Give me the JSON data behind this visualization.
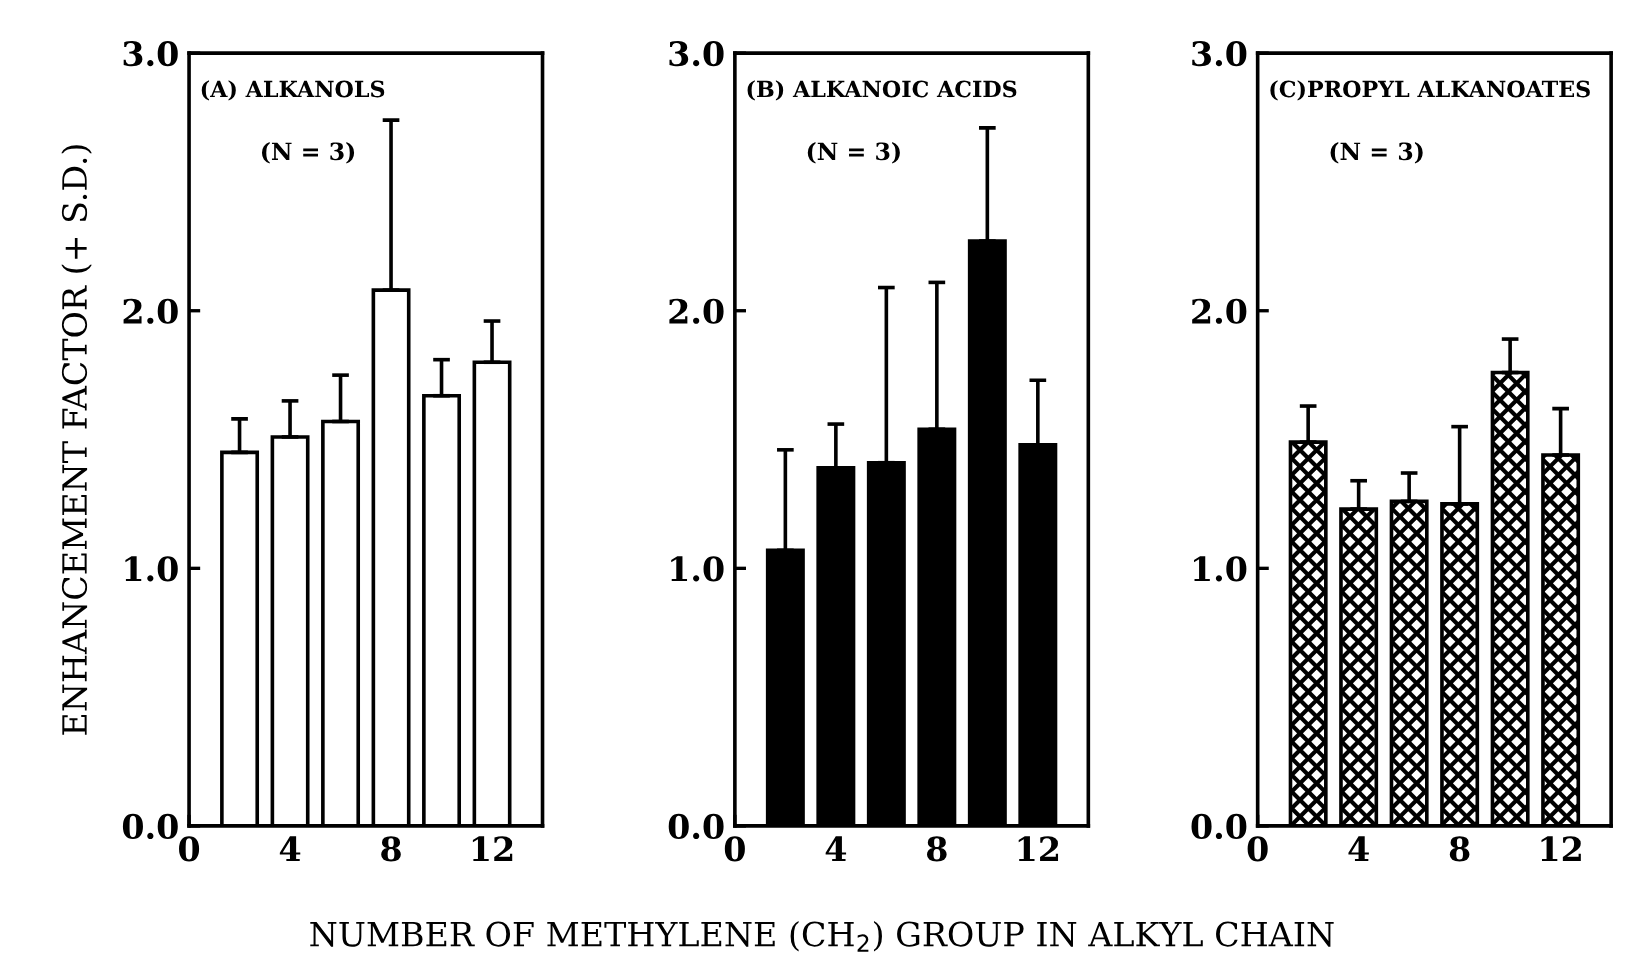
{
  "chart_data": [
    {
      "type": "bar",
      "title": "(A) ALKANOLS",
      "annotations": [
        "(N = 3)"
      ],
      "ylabel": "ENHANCEMENT FACTOR (+ S.D.)",
      "x": [
        2,
        4,
        6,
        8,
        10,
        12
      ],
      "series": [
        {
          "color": "#ffffff",
          "values": [
            1.45,
            1.51,
            1.57,
            2.08,
            1.67,
            1.8
          ],
          "errors": [
            [
              1.45,
              1.58
            ],
            [
              1.51,
              1.65
            ],
            [
              1.57,
              1.75
            ],
            [
              2.08,
              2.74
            ],
            [
              1.67,
              1.81
            ],
            [
              1.8,
              1.96
            ]
          ]
        }
      ],
      "xlim": [
        0,
        14
      ],
      "xticks": [
        0,
        4,
        8,
        12
      ],
      "ylim": [
        0,
        3
      ],
      "yticks": [
        {
          "value": 0,
          "label": "0.0"
        },
        {
          "value": 1,
          "label": "1.0"
        },
        {
          "value": 2,
          "label": "2.0"
        },
        {
          "value": 3,
          "label": "3.0"
        }
      ]
    },
    {
      "type": "bar",
      "title": "(B) ALKANOIC ACIDS",
      "annotations": [
        "(N = 3)"
      ],
      "xlabel": "NUMBER OF METHYLENE (CH$_{2}$) GROUP IN ALKYL CHAIN",
      "x": [
        2,
        4,
        6,
        8,
        10,
        12
      ],
      "series": [
        {
          "color": "#000000",
          "values": [
            1.07,
            1.39,
            1.41,
            1.54,
            2.27,
            1.48
          ],
          "errors": [
            [
              1.07,
              1.46
            ],
            [
              1.39,
              1.56
            ],
            [
              1.41,
              2.09
            ],
            [
              1.54,
              2.11
            ],
            [
              2.27,
              2.71
            ],
            [
              1.48,
              1.73
            ]
          ]
        }
      ],
      "xlim": [
        0,
        14
      ],
      "xticks": [
        0,
        4,
        8,
        12
      ],
      "ylim": [
        0,
        3
      ],
      "yticks": [
        {
          "value": 0,
          "label": "0.0"
        },
        {
          "value": 1,
          "label": "1.0"
        },
        {
          "value": 2,
          "label": "2.0"
        },
        {
          "value": 3,
          "label": "3.0"
        }
      ]
    },
    {
      "type": "bar",
      "title": "(C)PROPYL ALKANOATES",
      "annotations": [
        "(N = 3)"
      ],
      "x": [
        2,
        4,
        6,
        8,
        10,
        12
      ],
      "series": [
        {
          "color": "#000000",
          "values": [
            1.49,
            1.23,
            1.26,
            1.25,
            1.76,
            1.44
          ],
          "errors": [
            [
              1.49,
              1.63
            ],
            [
              1.23,
              1.34
            ],
            [
              1.26,
              1.37
            ],
            [
              1.25,
              1.55
            ],
            [
              1.76,
              1.89
            ],
            [
              1.44,
              1.62
            ]
          ]
        }
      ],
      "xlim": [
        0,
        14
      ],
      "xticks": [
        0,
        4,
        8,
        12
      ],
      "ylim": [
        0,
        3
      ],
      "yticks": [
        {
          "value": 0,
          "label": "0.0"
        },
        {
          "value": 1,
          "label": "1.0"
        },
        {
          "value": 2,
          "label": "2.0"
        },
        {
          "value": 3,
          "label": "3.0"
        }
      ]
    }
  ]
}
